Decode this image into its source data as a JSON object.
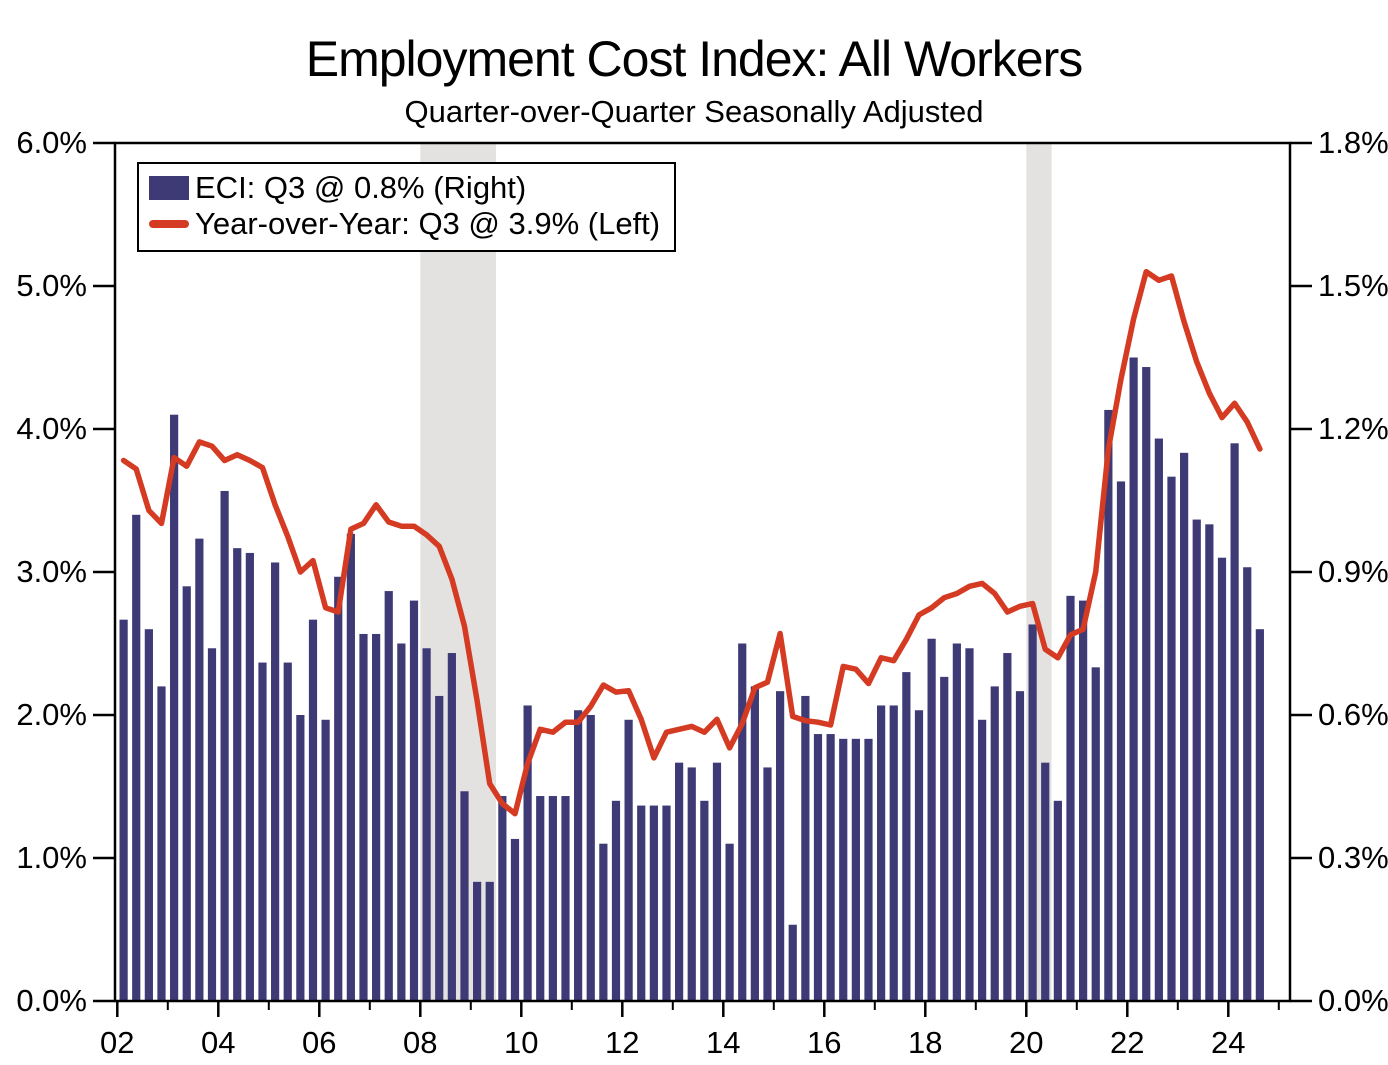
{
  "title": "Employment Cost Index: All Workers",
  "subtitle": "Quarter-over-Quarter Seasonally Adjusted",
  "legend": {
    "bar_label": "ECI: Q3 @ 0.8% (Right)",
    "line_label": "Year-over-Year: Q3 @ 3.9% (Left)"
  },
  "colors": {
    "bar": "#3E3A75",
    "line": "#D43B22",
    "recession_band": "#E3E2E1",
    "axis": "#000000",
    "text": "#000000",
    "background": "#FFFFFF"
  },
  "chart_data": {
    "type": "bar+line",
    "start_period": "2002Q1",
    "frequency": "quarterly",
    "x_axis": {
      "tick_years_labeled": [
        2002,
        2004,
        2006,
        2008,
        2010,
        2012,
        2014,
        2016,
        2018,
        2020,
        2022,
        2024
      ],
      "tick_labels": [
        "02",
        "04",
        "06",
        "08",
        "10",
        "12",
        "14",
        "16",
        "18",
        "20",
        "22",
        "24"
      ],
      "minor_tick_years": [
        2003,
        2005,
        2007,
        2009,
        2011,
        2013,
        2015,
        2017,
        2019,
        2021,
        2023,
        2025
      ]
    },
    "left_axis": {
      "title_hint": "Year-over-Year %",
      "min": 0,
      "max": 6,
      "tick_labels": [
        "0.0%",
        "1.0%",
        "2.0%",
        "3.0%",
        "4.0%",
        "5.0%",
        "6.0%"
      ]
    },
    "right_axis": {
      "title_hint": "Quarter-over-Quarter %",
      "min": 0,
      "max": 1.8,
      "tick_labels": [
        "0.0%",
        "0.3%",
        "0.6%",
        "0.9%",
        "1.2%",
        "1.5%",
        "1.8%"
      ]
    },
    "recession_bands_years": [
      [
        2008.0,
        2009.5
      ],
      [
        2020.0,
        2020.5
      ]
    ],
    "series": [
      {
        "name": "ECI: Q3 @ 0.8% (Right)",
        "type": "bar",
        "axis": "right",
        "values": [
          0.8,
          1.02,
          0.78,
          0.66,
          1.23,
          0.87,
          0.97,
          0.74,
          1.07,
          0.95,
          0.94,
          0.71,
          0.92,
          0.71,
          0.6,
          0.8,
          0.59,
          0.89,
          0.98,
          0.77,
          0.77,
          0.86,
          0.75,
          0.84,
          0.74,
          0.64,
          0.73,
          0.44,
          0.25,
          0.25,
          0.43,
          0.34,
          0.62,
          0.43,
          0.43,
          0.43,
          0.61,
          0.6,
          0.33,
          0.42,
          0.59,
          0.41,
          0.41,
          0.41,
          0.5,
          0.49,
          0.42,
          0.5,
          0.33,
          0.75,
          0.66,
          0.49,
          0.65,
          0.16,
          0.64,
          0.56,
          0.56,
          0.55,
          0.55,
          0.55,
          0.62,
          0.62,
          0.69,
          0.61,
          0.76,
          0.68,
          0.75,
          0.74,
          0.59,
          0.66,
          0.73,
          0.65,
          0.79,
          0.5,
          0.42,
          0.85,
          0.84,
          0.7,
          1.24,
          1.09,
          1.35,
          1.33,
          1.18,
          1.1,
          1.15,
          1.01,
          1.0,
          0.93,
          1.17,
          0.91,
          0.78
        ]
      },
      {
        "name": "Year-over-Year: Q3 @ 3.9% (Left)",
        "type": "line",
        "axis": "left",
        "values": [
          3.78,
          3.72,
          3.43,
          3.34,
          3.8,
          3.74,
          3.91,
          3.88,
          3.78,
          3.82,
          3.78,
          3.73,
          3.47,
          3.25,
          3.0,
          3.08,
          2.75,
          2.72,
          3.3,
          3.34,
          3.47,
          3.35,
          3.32,
          3.32,
          3.26,
          3.18,
          2.95,
          2.62,
          2.1,
          1.52,
          1.38,
          1.31,
          1.66,
          1.9,
          1.88,
          1.95,
          1.95,
          2.06,
          2.21,
          2.16,
          2.17,
          1.97,
          1.7,
          1.88,
          1.9,
          1.92,
          1.88,
          1.97,
          1.77,
          1.94,
          2.19,
          2.23,
          2.57,
          1.99,
          1.96,
          1.95,
          1.93,
          2.34,
          2.32,
          2.22,
          2.4,
          2.38,
          2.53,
          2.7,
          2.75,
          2.82,
          2.85,
          2.9,
          2.92,
          2.85,
          2.72,
          2.76,
          2.78,
          2.46,
          2.4,
          2.56,
          2.6,
          3.0,
          3.86,
          4.35,
          4.77,
          5.1,
          5.04,
          5.07,
          4.75,
          4.47,
          4.25,
          4.08,
          4.18,
          4.05,
          3.86
        ]
      }
    ]
  }
}
